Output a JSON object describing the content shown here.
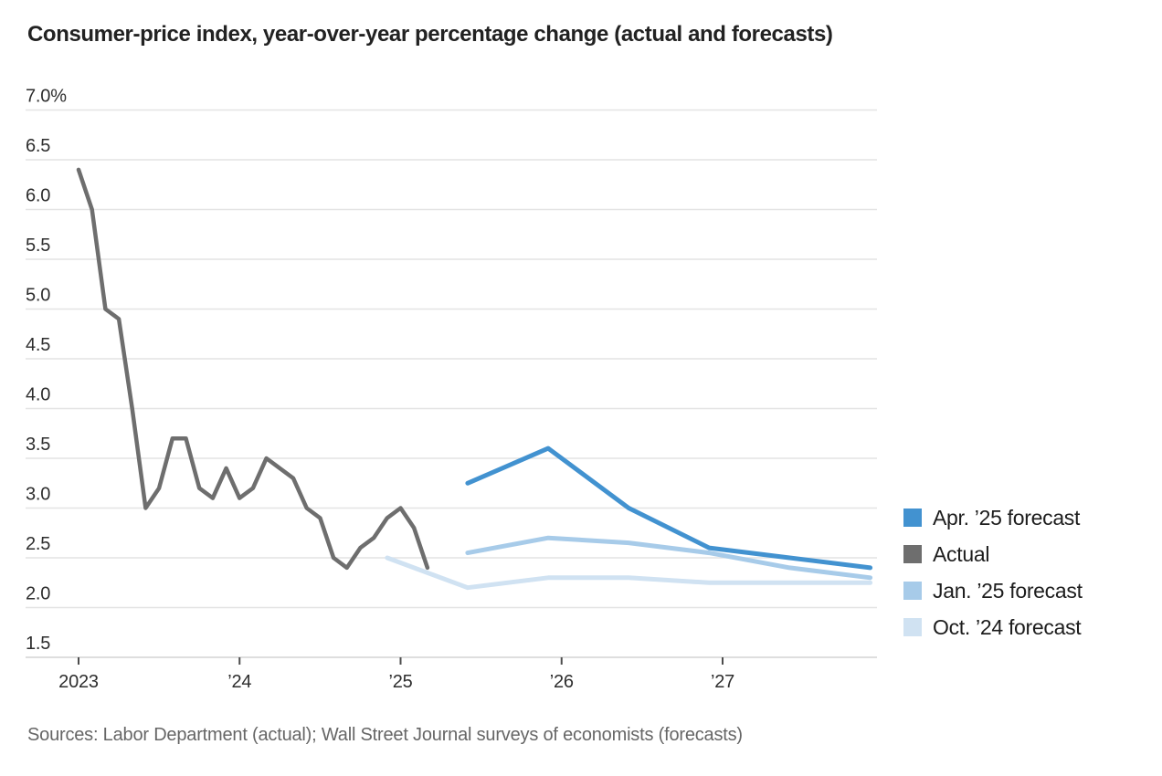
{
  "page": {
    "title": "Consumer-price index, year-over-year percentage change (actual and forecasts)",
    "source_note": "Sources: Labor Department (actual); Wall Street Journal surveys of economists (forecasts)"
  },
  "legend": {
    "position": "right",
    "items": [
      {
        "label": "Apr. ’25 forecast",
        "color": "#4292d0"
      },
      {
        "label": "Actual",
        "color": "#6e6e6e"
      },
      {
        "label": "Jan. ’25 forecast",
        "color": "#a7cbe9"
      },
      {
        "label": "Oct. ’24 forecast",
        "color": "#d0e2f2"
      }
    ]
  },
  "chart_data": {
    "type": "line",
    "title": "Consumer-price index, year-over-year percentage change (actual and forecasts)",
    "xlabel": "",
    "ylabel": "Year-over-year percentage change",
    "grid": "horizontal",
    "legend_position": "right",
    "x_axis": {
      "tick_positions": [
        2023,
        2024,
        2025,
        2026,
        2027
      ],
      "tick_labels": [
        "2023",
        "’24",
        "’25",
        "’26",
        "’27"
      ],
      "range": [
        2023.0,
        2028.0
      ]
    },
    "y_axis": {
      "unit": "%",
      "range": [
        1.5,
        7.0
      ],
      "tick_values": [
        7.0,
        6.5,
        6.0,
        5.5,
        5.0,
        4.5,
        4.0,
        3.5,
        3.0,
        2.5,
        2.0,
        1.5
      ],
      "tick_labels": [
        "7.0%",
        "6.5",
        "6.0",
        "5.5",
        "5.0",
        "4.5",
        "4.0",
        "3.5",
        "3.0",
        "2.5",
        "2.0",
        "1.5"
      ]
    },
    "series": [
      {
        "name": "Actual",
        "color": "#6e6e6e",
        "period": "monthly, Jan. 2023 – Mar. 2025",
        "x_start": 2023.0,
        "x_interval": 0.0833333,
        "values": [
          6.4,
          6.0,
          5.0,
          4.9,
          4.0,
          3.0,
          3.2,
          3.7,
          3.7,
          3.2,
          3.1,
          3.4,
          3.1,
          3.2,
          3.5,
          3.4,
          3.3,
          3.0,
          2.9,
          2.5,
          2.4,
          2.6,
          2.7,
          2.9,
          3.0,
          2.8,
          2.4
        ]
      },
      {
        "name": "Apr. ’25 forecast",
        "color": "#4292d0",
        "point_labels": [
          "Jun. 2025",
          "Dec. 2025",
          "Jun. 2026",
          "Dec. 2026",
          "Jun. 2027",
          "Dec. 2027"
        ],
        "x": [
          2025.4167,
          2025.9167,
          2026.4167,
          2026.9167,
          2027.4167,
          2027.9167
        ],
        "values": [
          3.25,
          3.6,
          3.0,
          2.6,
          2.5,
          2.4
        ]
      },
      {
        "name": "Jan. ’25 forecast",
        "color": "#a7cbe9",
        "point_labels": [
          "Jun. 2025",
          "Dec. 2025",
          "Jun. 2026",
          "Dec. 2026",
          "Jun. 2027",
          "Dec. 2027"
        ],
        "x": [
          2025.4167,
          2025.9167,
          2026.4167,
          2026.9167,
          2027.4167,
          2027.9167
        ],
        "values": [
          2.55,
          2.7,
          2.65,
          2.55,
          2.4,
          2.3
        ]
      },
      {
        "name": "Oct. ’24 forecast",
        "color": "#d0e2f2",
        "point_labels": [
          "Dec. 2024",
          "Jun. 2025",
          "Dec. 2025",
          "Jun. 2026",
          "Dec. 2026",
          "Jun. 2027",
          "Dec. 2027"
        ],
        "x": [
          2024.9167,
          2025.4167,
          2025.9167,
          2026.4167,
          2026.9167,
          2027.4167,
          2027.9167
        ],
        "values": [
          2.5,
          2.2,
          2.3,
          2.3,
          2.25,
          2.25,
          2.25
        ]
      }
    ]
  }
}
